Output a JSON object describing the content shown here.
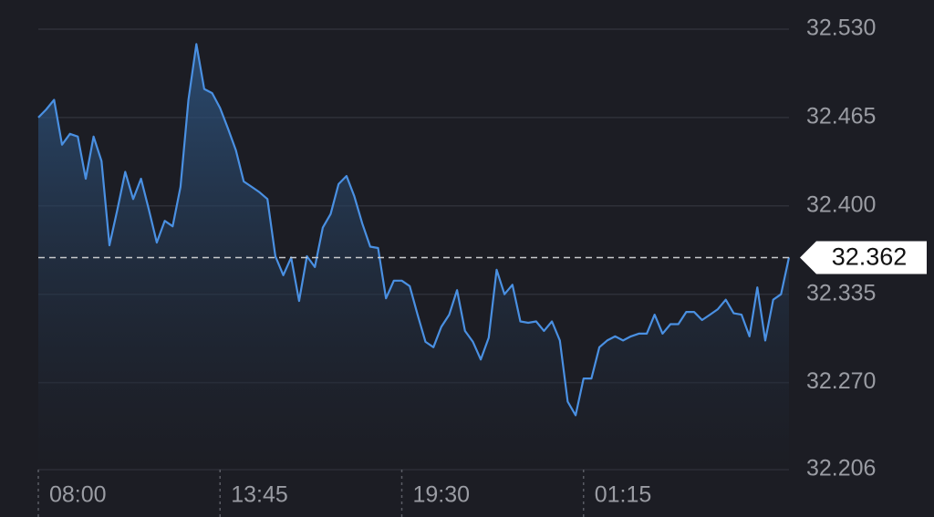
{
  "chart_data": {
    "type": "area",
    "values": [
      32.465,
      32.471,
      32.478,
      32.445,
      32.453,
      32.451,
      32.42,
      32.451,
      32.433,
      32.371,
      32.397,
      32.425,
      32.405,
      32.42,
      32.397,
      32.373,
      32.389,
      32.385,
      32.414,
      32.478,
      32.519,
      32.486,
      32.483,
      32.472,
      32.457,
      32.441,
      32.418,
      32.414,
      32.41,
      32.405,
      32.363,
      32.349,
      32.362,
      32.33,
      32.363,
      32.355,
      32.384,
      32.394,
      32.416,
      32.422,
      32.407,
      32.387,
      32.37,
      32.369,
      32.332,
      32.345,
      32.345,
      32.341,
      32.32,
      32.3,
      32.296,
      32.311,
      32.32,
      32.338,
      32.308,
      32.3,
      32.287,
      32.303,
      32.353,
      32.335,
      32.342,
      32.315,
      32.314,
      32.315,
      32.308,
      32.315,
      32.301,
      32.256,
      32.246,
      32.273,
      32.273,
      32.296,
      32.301,
      32.304,
      32.301,
      32.304,
      32.306,
      32.306,
      32.32,
      32.306,
      32.313,
      32.313,
      32.322,
      32.322,
      32.316,
      32.32,
      32.324,
      32.331,
      32.321,
      32.32,
      32.304,
      32.34,
      32.301,
      32.331,
      32.335,
      32.362
    ],
    "color": "#4a90e2",
    "current_value": 32.362,
    "xlim": [
      0,
      95
    ],
    "xticks": [
      {
        "value": 0,
        "label": "08:00"
      },
      {
        "value": 23,
        "label": "13:45"
      },
      {
        "value": 46,
        "label": "19:30"
      },
      {
        "value": 69,
        "label": "01:15"
      }
    ],
    "ylim": [
      32.206,
      32.53
    ],
    "yticks": [
      {
        "value": 32.53,
        "label": "32.530"
      },
      32.465,
      {
        "value": 32.4,
        "label": "32.400"
      },
      32.335,
      {
        "value": 32.27,
        "label": "32.270"
      },
      32.206
    ],
    "grid": true
  }
}
